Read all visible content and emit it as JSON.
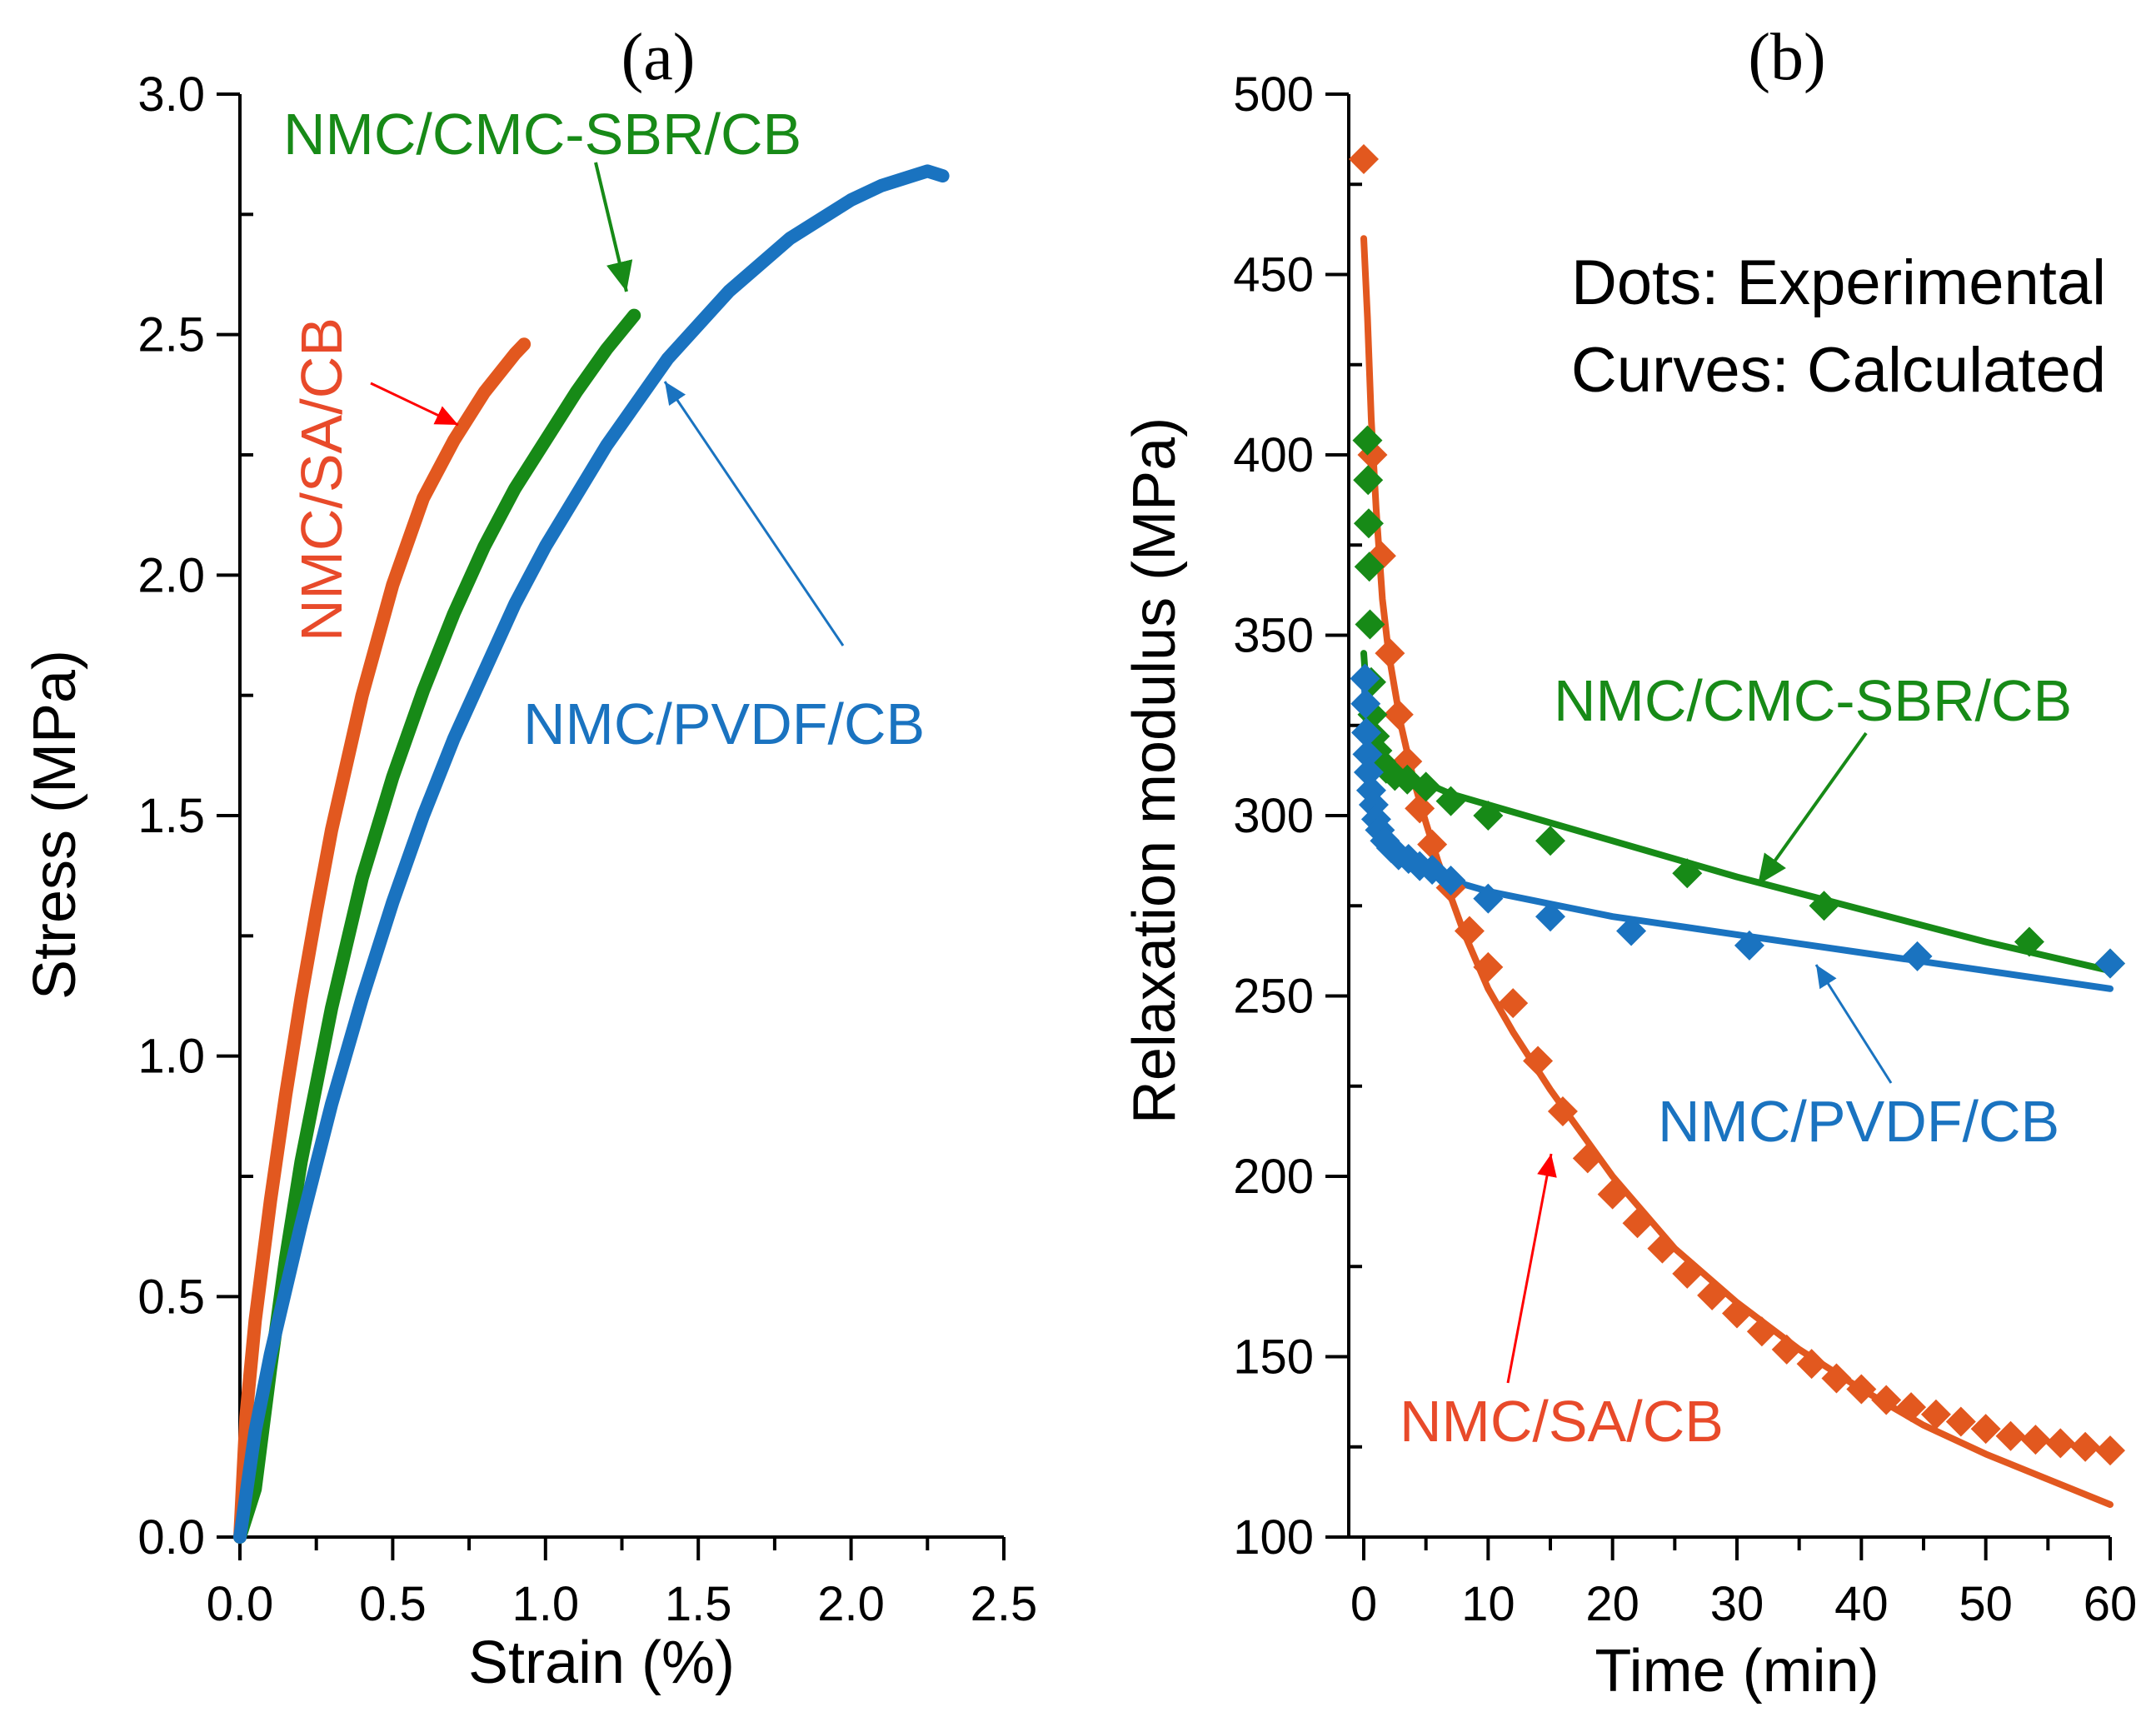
{
  "colors": {
    "sa": "#e2581f",
    "cmc": "#178a17",
    "pvdf": "#1a73c0",
    "axis": "#000000"
  },
  "chart_data": [
    {
      "panel": "(a)",
      "type": "line",
      "xlabel": "Strain (%)",
      "ylabel": "Stress (MPa)",
      "xlim": [
        0,
        2.5
      ],
      "ylim": [
        0,
        3.0
      ],
      "xticks": [
        "0.0",
        "0.5",
        "1.0",
        "1.5",
        "2.0",
        "2.5"
      ],
      "yticks": [
        "0.0",
        "0.5",
        "1.0",
        "1.5",
        "2.0",
        "2.5",
        "3.0"
      ],
      "series": [
        {
          "key": "sa",
          "name": "NMC/SA/CB",
          "x": [
            0,
            0.02,
            0.05,
            0.1,
            0.15,
            0.2,
            0.25,
            0.3,
            0.4,
            0.5,
            0.6,
            0.7,
            0.8,
            0.9,
            0.93
          ],
          "y": [
            0,
            0.25,
            0.45,
            0.7,
            0.92,
            1.12,
            1.3,
            1.47,
            1.75,
            1.98,
            2.16,
            2.28,
            2.38,
            2.46,
            2.48
          ]
        },
        {
          "key": "cmc",
          "name": "NMC/CMC-SBR/CB",
          "x": [
            0,
            0.05,
            0.1,
            0.15,
            0.2,
            0.3,
            0.4,
            0.5,
            0.6,
            0.7,
            0.8,
            0.9,
            1.0,
            1.1,
            1.2,
            1.29
          ],
          "y": [
            0,
            0.1,
            0.35,
            0.58,
            0.78,
            1.1,
            1.37,
            1.58,
            1.76,
            1.92,
            2.06,
            2.18,
            2.28,
            2.38,
            2.47,
            2.54
          ]
        },
        {
          "key": "pvdf",
          "name": "NMC/PVDF/CB",
          "x": [
            0,
            0.05,
            0.1,
            0.2,
            0.3,
            0.4,
            0.5,
            0.6,
            0.7,
            0.8,
            0.9,
            1.0,
            1.2,
            1.4,
            1.6,
            1.8,
            2.0,
            2.1,
            2.2,
            2.25,
            2.3
          ],
          "y": [
            0,
            0.22,
            0.38,
            0.65,
            0.9,
            1.12,
            1.32,
            1.5,
            1.66,
            1.8,
            1.94,
            2.06,
            2.27,
            2.45,
            2.59,
            2.7,
            2.78,
            2.81,
            2.83,
            2.84,
            2.83
          ]
        }
      ],
      "annotations": [
        {
          "key": "cmc",
          "text": "NMC/CMC-SBR/CB",
          "arrow_to": [
            1.28,
            2.56
          ]
        },
        {
          "key": "sa",
          "text": "NMC/SA/CB",
          "arrow_to": [
            0.73,
            2.3
          ]
        },
        {
          "key": "pvdf",
          "text": "NMC/PVDF/CB",
          "arrow_to": [
            1.39,
            2.4
          ]
        }
      ]
    },
    {
      "panel": "(b)",
      "type": "scatter",
      "xlabel": "Time (min)",
      "ylabel": "Relaxation modulus (MPa)",
      "xlim": [
        0,
        60
      ],
      "ylim": [
        100,
        500
      ],
      "xticks": [
        "0",
        "10",
        "20",
        "30",
        "40",
        "50",
        "60"
      ],
      "yticks": [
        "100",
        "150",
        "200",
        "250",
        "300",
        "350",
        "400",
        "450",
        "500"
      ],
      "note": [
        "Dots: Experimental",
        "Curves: Calculated"
      ],
      "series": [
        {
          "key": "sa",
          "name": "NMC/SA/CB",
          "points_x": [
            0,
            0.7,
            1.4,
            2.1,
            2.8,
            3.5,
            4.5,
            5.5,
            7,
            8.5,
            10,
            12,
            14,
            16,
            18,
            20,
            22,
            24,
            26,
            28,
            30,
            32,
            34,
            36,
            38,
            40,
            42,
            44,
            46,
            48,
            50,
            52,
            54,
            56,
            58,
            60
          ],
          "points_y": [
            482,
            400,
            372,
            345,
            328,
            315,
            302,
            292,
            280,
            268,
            258,
            248,
            232,
            218,
            205,
            195,
            187,
            180,
            173,
            167,
            162,
            157,
            152,
            148,
            144,
            141,
            138,
            136,
            134,
            132,
            130,
            128,
            127,
            126,
            125,
            124
          ],
          "fit_x": [
            0,
            0.3,
            0.6,
            1,
            1.5,
            2,
            2.5,
            3,
            4,
            5,
            6,
            8,
            10,
            12,
            15,
            20,
            25,
            30,
            35,
            40,
            45,
            50,
            55,
            60
          ],
          "fit_y": [
            460,
            438,
            410,
            385,
            360,
            345,
            335,
            325,
            310,
            298,
            287,
            268,
            252,
            240,
            224,
            200,
            180,
            165,
            152,
            141,
            131,
            123,
            116,
            109
          ]
        },
        {
          "key": "cmc",
          "name": "NMC/CMC-SBR/CB",
          "points_x": [
            0.3,
            0.35,
            0.4,
            0.45,
            0.5,
            0.6,
            0.7,
            0.9,
            1.1,
            1.4,
            1.8,
            2.5,
            3.5,
            5,
            7,
            10,
            15,
            26,
            37,
            53.5,
            60
          ],
          "points_y": [
            404,
            393,
            381,
            369,
            353,
            337,
            328,
            322,
            318,
            315,
            313,
            311,
            310,
            308,
            304,
            300,
            293,
            284,
            275,
            265,
            259
          ],
          "fit_x": [
            0,
            0.3,
            0.6,
            1,
            1.5,
            2,
            3,
            4,
            5,
            7,
            10,
            20,
            30,
            40,
            50,
            60
          ],
          "fit_y": [
            345,
            330,
            320,
            316,
            314,
            312,
            311,
            310,
            309,
            306,
            303,
            293,
            283,
            274,
            265,
            257
          ]
        },
        {
          "key": "pvdf",
          "name": "NMC/PVDF/CB",
          "points_x": [
            0.1,
            0.15,
            0.2,
            0.3,
            0.4,
            0.6,
            0.8,
            1.0,
            1.3,
            1.7,
            2.2,
            2.8,
            3.6,
            4.5,
            5.5,
            7,
            10,
            15,
            21.5,
            31,
            44.5,
            60
          ],
          "points_y": [
            338,
            331,
            323,
            317,
            312,
            307,
            303,
            299,
            296,
            293,
            291,
            289,
            288,
            286,
            285,
            282,
            277,
            272,
            268,
            264,
            261,
            259
          ],
          "fit_x": [
            0,
            0.3,
            0.6,
            1,
            1.5,
            2,
            3,
            4,
            5,
            6,
            8,
            10,
            20,
            30,
            40,
            50,
            60
          ],
          "fit_y": [
            340,
            318,
            308,
            302,
            297,
            294,
            290,
            287,
            285,
            283,
            281,
            279,
            272,
            267,
            262,
            257,
            252
          ]
        }
      ],
      "annotations": [
        {
          "key": "cmc",
          "text": "NMC/CMC-SBR/CB",
          "arrow_to": [
            32.5,
            285
          ]
        },
        {
          "key": "pvdf",
          "text": "NMC/PVDF/CB",
          "arrow_to": [
            36.5,
            260
          ]
        },
        {
          "key": "sa",
          "text": "NMC/SA/CB",
          "arrow_to": [
            15.8,
            207
          ]
        }
      ]
    }
  ]
}
